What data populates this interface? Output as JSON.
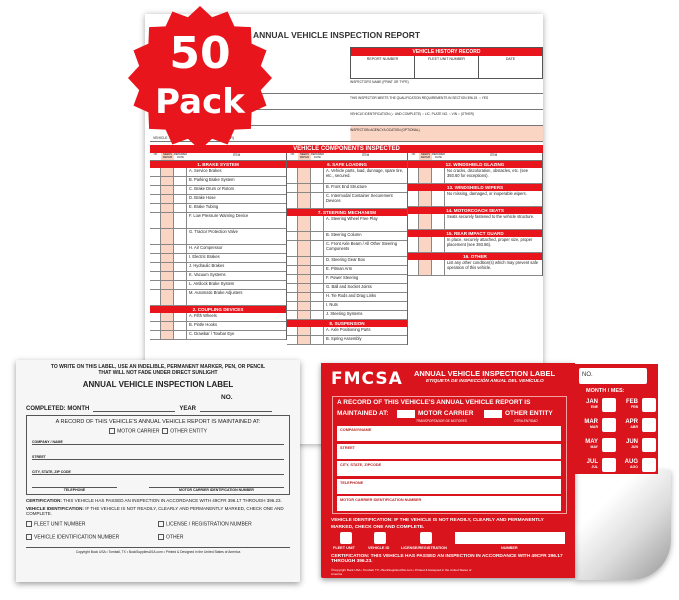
{
  "badge": {
    "number": "50",
    "label": "Pack",
    "color": "#e8151d"
  },
  "report": {
    "title": "ANNUAL VEHICLE INSPECTION REPORT",
    "history": {
      "title": "VEHICLE HISTORY RECORD",
      "cols": [
        "REPORT NUMBER",
        "FLEET UNIT NUMBER",
        "DATE"
      ]
    },
    "rows": [
      "INSPECTOR'S NAME (PRINT OR TYPE)",
      "THIS INSPECTOR MEETS THE QUALIFICATION REQUIREMENTS IN SECTION 396.19.   ○ YES",
      "VEHICLE IDENTIFICATION (✓ AND COMPLETE)   ○ LIC. PLATE NO.   ○ VIN   ○ (OTHER)",
      "INSPECTION AGENCY/LOCATION (OPTIONAL)"
    ],
    "vehicle_type": "VEHICLE ... TRAILER   ☐ TRUCK   ☐ BUS   ☐ (OTHER)",
    "components_title": "VEHICLE COMPONENTS INSPECTED",
    "colheads": {
      "ok": "OK",
      "needs": "NEEDS REPAIR",
      "repaired": "REPAIRED DATE",
      "item": "ITEM"
    },
    "columns": [
      [
        {
          "section": "1. BRAKE SYSTEM"
        },
        {
          "item": "A. Service Brakes"
        },
        {
          "item": "B. Parking Brake System"
        },
        {
          "item": "C. Brake Drum or Rotors"
        },
        {
          "item": "D. Brake Hose"
        },
        {
          "item": "E. Brake Tubing"
        },
        {
          "item": "F. Low Pressure Warning Device"
        },
        {
          "item": "G. Tractor Protection Valve"
        },
        {
          "item": "H. Air Compressor"
        },
        {
          "item": "I. Electric Brakes"
        },
        {
          "item": "J. Hydraulic Brakes"
        },
        {
          "item": "K. Vacuum Systems"
        },
        {
          "item": "L. Antilock Brake System"
        },
        {
          "item": "M. Automatic Brake Adjusters"
        },
        {
          "section": "2. COUPLING DEVICES"
        },
        {
          "item": "A. Fifth Wheels"
        },
        {
          "item": "B. Pintle Hooks"
        },
        {
          "item": "C. Drawbar / Towbar Eye"
        }
      ],
      [
        {
          "section": "6. SAFE LOADING"
        },
        {
          "item": "A. Vehicle parts, load, dunnage, spare tire, etc., secured."
        },
        {
          "item": "B. Front End Structure"
        },
        {
          "item": "C. Intermodal Container Securement Devices"
        },
        {
          "section": "7. STEERING MECHANISM"
        },
        {
          "item": "A. Steering Wheel Free Play"
        },
        {
          "item": "B. Steering Column"
        },
        {
          "item": "C. Front Axle Beam / All Other Steering Components"
        },
        {
          "item": "D. Steering Gear Box"
        },
        {
          "item": "E. Pitman Arm"
        },
        {
          "item": "F. Power Steering"
        },
        {
          "item": "G. Ball and Socket Joints"
        },
        {
          "item": "H. Tie Rods and Drag Links"
        },
        {
          "item": "I. Nuts"
        },
        {
          "item": "J. Steering Systems"
        },
        {
          "section": "8. SUSPENSION"
        },
        {
          "item": "A. Axle Positioning Parts"
        },
        {
          "item": "B. Spring Assembly"
        }
      ],
      [
        {
          "section": "12. WINDSHIELD GLAZING"
        },
        {
          "item": "No cracks, discoloration, obstacles, etc. (see 393.60 for exceptions)."
        },
        {
          "section": "13. WINDSHIELD WIPERS"
        },
        {
          "item": "No missing, damaged, or inoperable wipers."
        },
        {
          "section": "14. MOTORCOACH SEATS"
        },
        {
          "item": "Seats securely fastened to the vehicle structure."
        },
        {
          "section": "15. REAR IMPACT GUARD"
        },
        {
          "item": "In place, securely attached, proper size, proper placement (see 393.86)."
        },
        {
          "section": "16. OTHER"
        },
        {
          "item": "List any other condition(s) which may prevent safe operation of this vehicle."
        }
      ]
    ]
  },
  "white_label": {
    "instructions": "TO WRITE ON THIS LABEL, USE AN INDELIBLE, PERMANENT MARKER, PEN, OR PENCIL THAT WILL NOT FADE UNDER DIRECT SUNLIGHT",
    "title": "ANNUAL VEHICLE INSPECTION LABEL",
    "no": "NO.",
    "completed_month": "COMPLETED: MONTH",
    "year": "YEAR",
    "record": "A RECORD OF THIS VEHICLE'S ANNUAL VEHICLE REPORT IS MAINTAINED AT:",
    "motor_carrier": "MOTOR CARRIER",
    "other_entity": "OTHER ENTITY",
    "company": "COMPANY / NAME",
    "street": "STREET",
    "city": "CITY, STATE, ZIP CODE",
    "telephone": "TELEPHONE",
    "mcid": "MOTOR CARRIER IDENTIFICATION NUMBER",
    "cert_label": "CERTIFICATION:",
    "cert": "THIS VEHICLE HAS PASSED AN INSPECTION IN ACCORDANCE WITH 49CFR 396.17 THROUGH 396.23.",
    "vid_label": "VEHICLE IDENTIFICATION:",
    "vid": "IF THE VEHICLE IS NOT READILY, CLEARLY AND PERMANENTLY MARKED, CHECK ONE AND COMPLETE.",
    "fleet": "FLEET UNIT NUMBER",
    "license": "LICENSE / REGISTRATION NUMBER",
    "vin": "VEHICLE IDENTIFICATION NUMBER",
    "other": "OTHER",
    "footer": "Copyright Buck USA • Tomball, TX • BuckSuppliesUSA.com • Printed & Designed in the United States of America"
  },
  "red_label": {
    "logo": "FMCSA",
    "title": "ANNUAL VEHICLE INSPECTION LABEL",
    "subtitle": "ETIQUETA DE INSPECCIÓN ANUAL DEL VEHÍCULO",
    "record": "A RECORD OF THIS VEHICLE'S ANNUAL VEHICLE REPORT IS",
    "maintained": "MAINTAINED AT:",
    "motor_carrier": "MOTOR CARRIER",
    "motor_carrier_es": "TRANSPORTADOR DE MOTORES",
    "other_entity": "OTHER ENTITY",
    "other_entity_es": "OTRA ENTIDAD",
    "fields": [
      "COMPANY/NAME",
      "STREET",
      "CITY, STATE, ZIPCODE",
      "TELEPHONE",
      "MOTOR CARRIER IDENTIFICATION NUMBER"
    ],
    "vid": "VEHICLE IDENTIFICATION: IF THE VEHICLE IS NOT READILY, CLEARLY AND PERMANENTLY MARKED, CHECK ONE AND COMPLETE.",
    "checks": [
      "FLEET UNIT",
      "VEHICLE ID",
      "LICENSE/REGISTRATION",
      "NUMBER"
    ],
    "cert": "CERTIFICATION: THIS VEHICLE HAS PASSED AN INSPECTION IN ACCORDANCE WITH 49CFR 396.17 THROUGH 396.23.",
    "footer": "©Copyright Buck USA • Tomball, TX • BuckSuppliesUSA.com • Printed & Designed in the United States of America",
    "no": "NO.",
    "month_title": "MONTH / MES:",
    "months": [
      {
        "en": "JAN",
        "es": "ENE"
      },
      {
        "en": "FEB",
        "es": "FEB"
      },
      {
        "en": "MAR",
        "es": "MAR"
      },
      {
        "en": "APR",
        "es": "ABR"
      },
      {
        "en": "MAY",
        "es": "MAY"
      },
      {
        "en": "JUN",
        "es": "JUN"
      },
      {
        "en": "JUL",
        "es": "JUL"
      },
      {
        "en": "AUG",
        "es": "AGO"
      }
    ],
    "color": "#d9141c"
  }
}
